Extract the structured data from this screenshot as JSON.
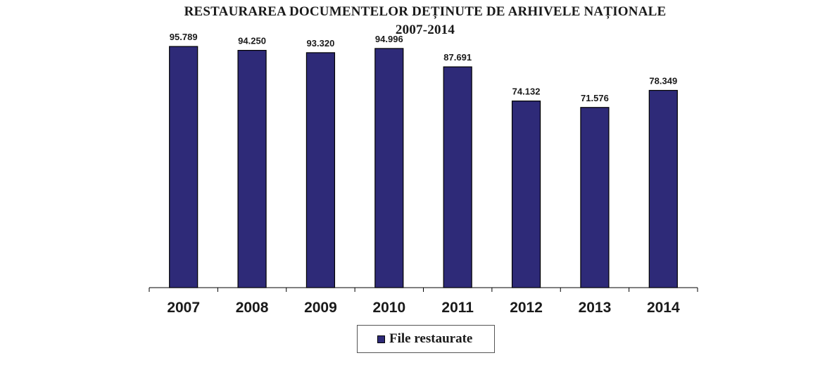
{
  "chart_data": {
    "type": "bar",
    "title": "RESTAURAREA DOCUMENTELOR DEȚINUTE DE ARHIVELE NAȚIONALE",
    "subtitle": "2007-2014",
    "categories": [
      "2007",
      "2008",
      "2009",
      "2010",
      "2011",
      "2012",
      "2013",
      "2014"
    ],
    "series": [
      {
        "name": "File restaurate",
        "values": [
          95789,
          94250,
          93320,
          94996,
          87691,
          74132,
          71576,
          78349
        ],
        "labels": [
          "95.789",
          "94.250",
          "93.320",
          "94.996",
          "87.691",
          "74.132",
          "71.576",
          "78.349"
        ],
        "color": "#2e2a78"
      }
    ],
    "ylim": [
      0,
      100000
    ],
    "grid": false,
    "legend_position": "bottom"
  }
}
